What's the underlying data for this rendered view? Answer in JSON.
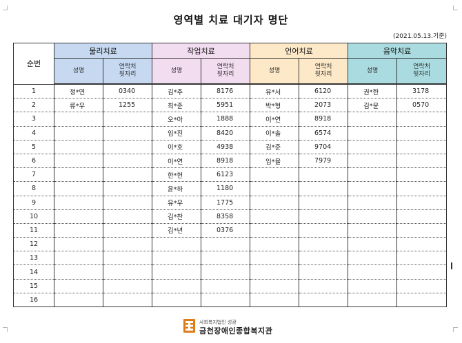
{
  "document": {
    "title": "영역별 치료 대기자 명단",
    "date": "(2021.05.13.기준)"
  },
  "table": {
    "seq_header": "순번",
    "groups": [
      {
        "label": "물리치료",
        "color": "#c6d9f0"
      },
      {
        "label": "작업치료",
        "color": "#f2dcf0"
      },
      {
        "label": "언어치료",
        "color": "#fde9c8"
      },
      {
        "label": "음악치료",
        "color": "#a9dbe0"
      }
    ],
    "sub_headers": {
      "name": "성명",
      "phone_line1": "연락처",
      "phone_line2": "뒷자리"
    },
    "rows": [
      {
        "no": "1",
        "c": [
          [
            "정*연",
            "0340"
          ],
          [
            "김*주",
            "8176"
          ],
          [
            "유*서",
            "6120"
          ],
          [
            "권*한",
            "3178"
          ]
        ]
      },
      {
        "no": "2",
        "c": [
          [
            "류*우",
            "1255"
          ],
          [
            "최*준",
            "5951"
          ],
          [
            "박*형",
            "2073"
          ],
          [
            "김*윤",
            "0570"
          ]
        ]
      },
      {
        "no": "3",
        "c": [
          [
            "",
            ""
          ],
          [
            "오*아",
            "1888"
          ],
          [
            "이*연",
            "8918"
          ],
          [
            "",
            ""
          ]
        ]
      },
      {
        "no": "4",
        "c": [
          [
            "",
            ""
          ],
          [
            "임*진",
            "8420"
          ],
          [
            "이*솔",
            "6574"
          ],
          [
            "",
            ""
          ]
        ]
      },
      {
        "no": "5",
        "c": [
          [
            "",
            ""
          ],
          [
            "이*호",
            "4938"
          ],
          [
            "김*준",
            "9704"
          ],
          [
            "",
            ""
          ]
        ]
      },
      {
        "no": "6",
        "c": [
          [
            "",
            ""
          ],
          [
            "이*연",
            "8918"
          ],
          [
            "임*율",
            "7979"
          ],
          [
            "",
            ""
          ]
        ]
      },
      {
        "no": "7",
        "c": [
          [
            "",
            ""
          ],
          [
            "한*헌",
            "6123"
          ],
          [
            "",
            ""
          ],
          [
            "",
            ""
          ]
        ]
      },
      {
        "no": "8",
        "c": [
          [
            "",
            ""
          ],
          [
            "윤*하",
            "1180"
          ],
          [
            "",
            ""
          ],
          [
            "",
            ""
          ]
        ]
      },
      {
        "no": "9",
        "c": [
          [
            "",
            ""
          ],
          [
            "유*우",
            "1775"
          ],
          [
            "",
            ""
          ],
          [
            "",
            ""
          ]
        ]
      },
      {
        "no": "10",
        "c": [
          [
            "",
            ""
          ],
          [
            "김*찬",
            "8358"
          ],
          [
            "",
            ""
          ],
          [
            "",
            ""
          ]
        ]
      },
      {
        "no": "11",
        "c": [
          [
            "",
            ""
          ],
          [
            "김*년",
            "0376"
          ],
          [
            "",
            ""
          ],
          [
            "",
            ""
          ]
        ]
      },
      {
        "no": "12",
        "c": [
          [
            "",
            ""
          ],
          [
            "",
            ""
          ],
          [
            "",
            ""
          ],
          [
            "",
            ""
          ]
        ]
      },
      {
        "no": "13",
        "c": [
          [
            "",
            ""
          ],
          [
            "",
            ""
          ],
          [
            "",
            ""
          ],
          [
            "",
            ""
          ]
        ]
      },
      {
        "no": "14",
        "c": [
          [
            "",
            ""
          ],
          [
            "",
            ""
          ],
          [
            "",
            ""
          ],
          [
            "",
            ""
          ]
        ]
      },
      {
        "no": "15",
        "c": [
          [
            "",
            ""
          ],
          [
            "",
            ""
          ],
          [
            "",
            ""
          ],
          [
            "",
            ""
          ]
        ]
      },
      {
        "no": "16",
        "c": [
          [
            "",
            ""
          ],
          [
            "",
            ""
          ],
          [
            "",
            ""
          ],
          [
            "",
            ""
          ]
        ]
      }
    ]
  },
  "footer": {
    "org_small": "사회복지법인 성광",
    "org_main": "금천장애인종합복지관",
    "logo_icon": "welfare-center-logo-icon",
    "logo_color": "#e07b1a"
  }
}
